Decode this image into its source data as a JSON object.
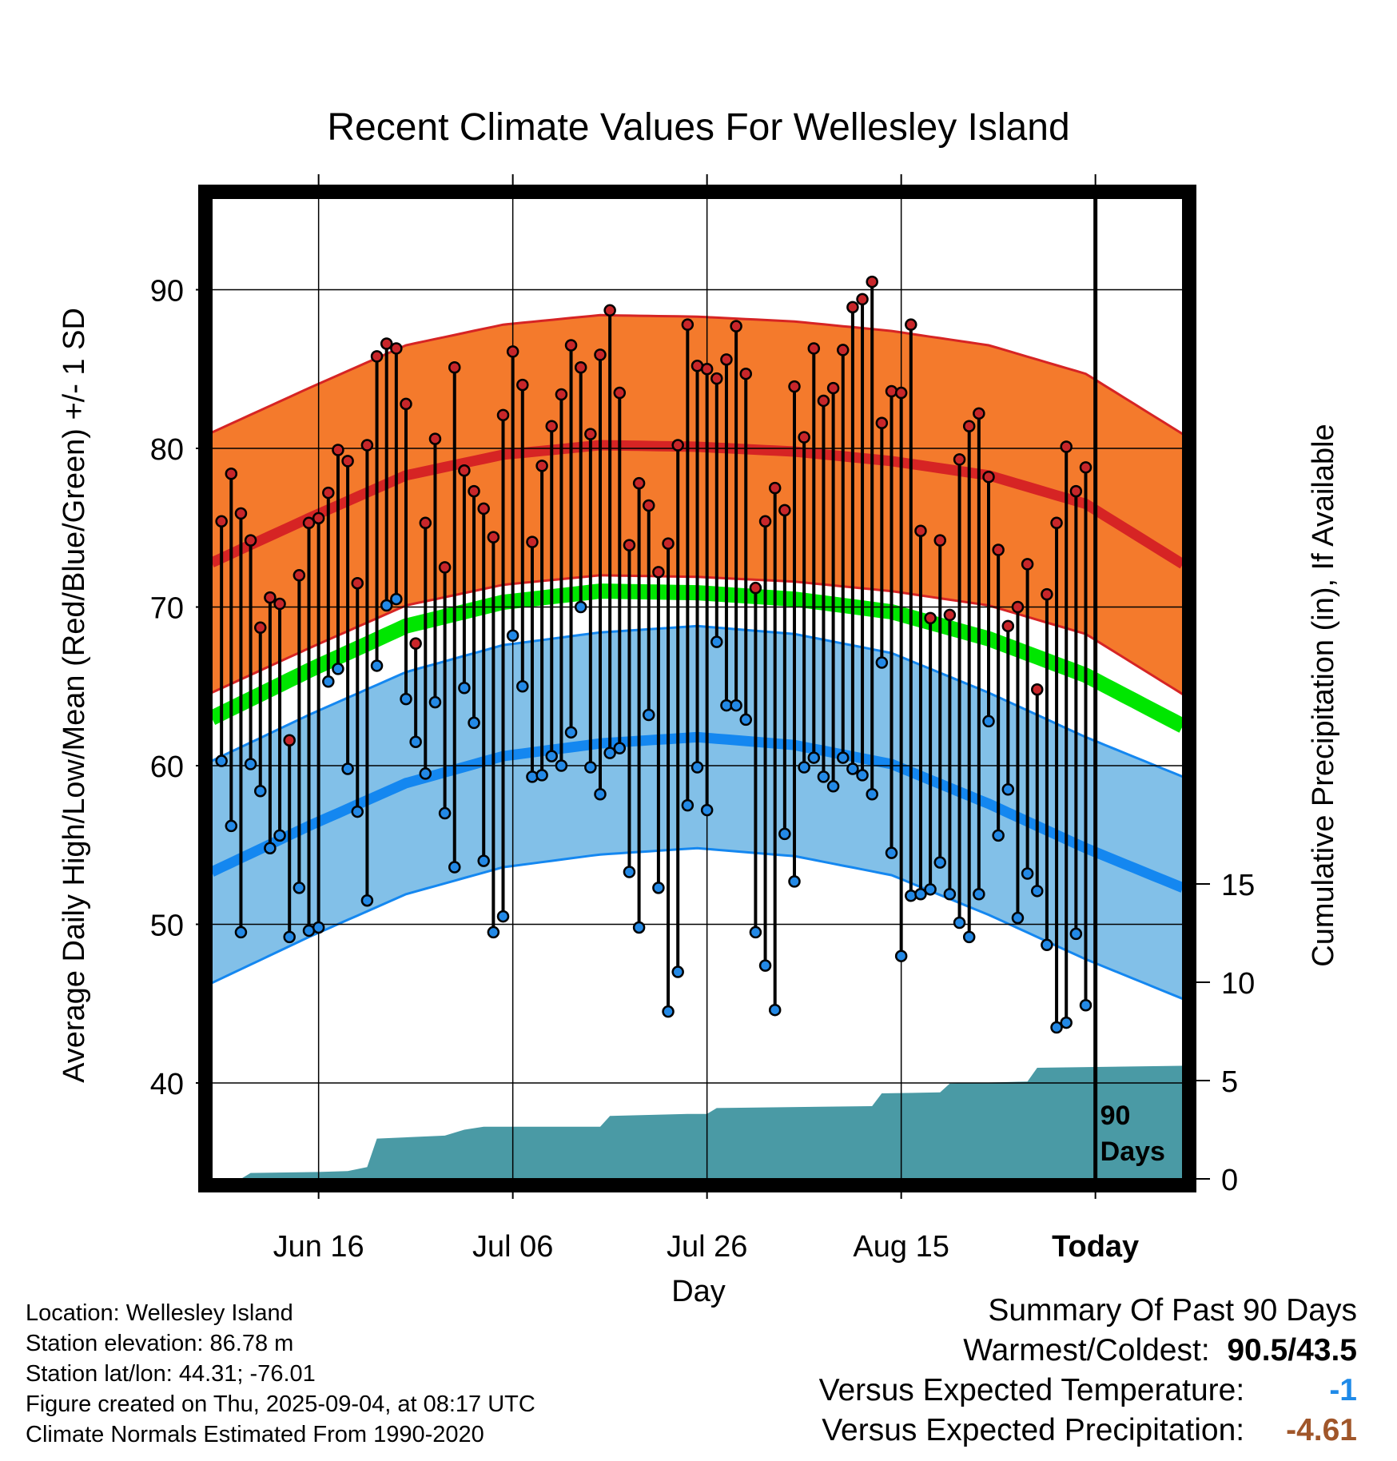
{
  "chart_data": {
    "type": "line",
    "title": "Recent Climate Values For Wellesley Island",
    "xlabel": "Day",
    "ylabel": "Average Daily High/Low/Mean (Red/Blue/Green) +/- 1 SD",
    "y2label": "Cumulative Precipitation (in), If Available",
    "ylim": [
      34,
      94
    ],
    "y2lim": [
      0,
      15
    ],
    "y_ticks": [
      40,
      50,
      60,
      70,
      80,
      90
    ],
    "y2_ticks": [
      0,
      5,
      10,
      15
    ],
    "x_ticks": [
      {
        "day": 11,
        "label": "Jun 16"
      },
      {
        "day": 31,
        "label": "Jul 06"
      },
      {
        "day": 51,
        "label": "Jul 26"
      },
      {
        "day": 71,
        "label": "Aug 15"
      },
      {
        "day": 91,
        "label": "Today"
      }
    ],
    "x_range_days": [
      0,
      100
    ],
    "today_day": 91,
    "today_note": [
      "90",
      "Days"
    ],
    "daily_high": [
      75.4,
      78.4,
      75.9,
      74.2,
      68.7,
      70.6,
      70.2,
      61.6,
      72.0,
      75.3,
      75.6,
      77.2,
      79.9,
      79.2,
      71.5,
      80.2,
      85.8,
      86.6,
      86.3,
      82.8,
      67.7,
      75.3,
      80.6,
      72.5,
      85.1,
      78.6,
      77.3,
      76.2,
      74.4,
      82.1,
      86.1,
      84.0,
      74.1,
      78.9,
      81.4,
      83.4,
      86.5,
      85.1,
      80.9,
      85.9,
      88.7,
      83.5,
      73.9,
      77.8,
      76.4,
      72.2,
      74.0,
      80.2,
      87.8,
      85.2,
      85.0,
      84.4,
      85.6,
      87.7,
      84.7,
      71.2,
      75.4,
      77.5,
      76.1,
      83.9,
      80.7,
      86.3,
      83.0,
      83.8,
      86.2,
      88.9,
      89.4,
      90.5,
      81.6,
      83.6,
      83.5,
      87.8,
      74.8,
      69.3,
      74.2,
      69.5,
      79.3,
      81.4,
      82.2,
      78.2,
      73.6,
      68.8,
      70.0,
      72.7,
      64.8,
      70.8,
      75.3,
      80.1,
      77.3,
      78.8
    ],
    "daily_low": [
      60.3,
      56.2,
      49.5,
      60.1,
      58.4,
      54.8,
      55.6,
      49.2,
      52.3,
      49.6,
      49.8,
      65.3,
      66.1,
      59.8,
      57.1,
      51.5,
      66.3,
      70.1,
      70.5,
      64.2,
      61.5,
      59.5,
      64.0,
      57.0,
      53.6,
      64.9,
      62.7,
      54.0,
      49.5,
      50.5,
      68.2,
      65.0,
      59.3,
      59.4,
      60.6,
      60.0,
      62.1,
      70.0,
      59.9,
      58.2,
      60.8,
      61.1,
      53.3,
      49.8,
      63.2,
      52.3,
      44.5,
      47.0,
      57.5,
      59.9,
      57.2,
      67.8,
      63.8,
      63.8,
      62.9,
      49.5,
      47.4,
      44.6,
      55.7,
      52.7,
      59.9,
      60.5,
      59.3,
      58.7,
      60.5,
      59.8,
      59.4,
      58.2,
      66.5,
      54.5,
      48.0,
      51.8,
      51.9,
      52.2,
      53.9,
      51.9,
      50.1,
      49.2,
      51.9,
      62.8,
      55.6,
      58.5,
      50.4,
      53.2,
      52.1,
      48.7,
      43.5,
      43.8,
      49.4,
      44.9
    ],
    "series": [
      {
        "name": "Normal High",
        "color": "#d62424",
        "mean": [
          [
            0,
            72.8
          ],
          [
            10,
            75.6
          ],
          [
            20,
            78.3
          ],
          [
            30,
            79.6
          ],
          [
            40,
            80.2
          ],
          [
            50,
            80.1
          ],
          [
            60,
            79.8
          ],
          [
            70,
            79.2
          ],
          [
            80,
            78.3
          ],
          [
            90,
            76.5
          ],
          [
            100,
            72.7
          ]
        ],
        "sd": 8.2
      },
      {
        "name": "Normal Mean",
        "color": "#00e600",
        "mean": [
          [
            0,
            63.0
          ],
          [
            10,
            66.0
          ],
          [
            20,
            68.8
          ],
          [
            30,
            70.3
          ],
          [
            40,
            71.0
          ],
          [
            50,
            70.9
          ],
          [
            60,
            70.5
          ],
          [
            70,
            69.7
          ],
          [
            80,
            68.0
          ],
          [
            90,
            65.7
          ],
          [
            100,
            62.5
          ]
        ]
      },
      {
        "name": "Normal Low",
        "color": "#1487f0",
        "mean": [
          [
            0,
            53.3
          ],
          [
            10,
            56.2
          ],
          [
            20,
            58.9
          ],
          [
            30,
            60.6
          ],
          [
            40,
            61.4
          ],
          [
            50,
            61.8
          ],
          [
            60,
            61.3
          ],
          [
            70,
            60.1
          ],
          [
            80,
            57.6
          ],
          [
            90,
            54.8
          ],
          [
            100,
            52.3
          ]
        ],
        "sd": 7.0
      }
    ],
    "precip_cumulative": [
      [
        0,
        0.0
      ],
      [
        3,
        0.0
      ],
      [
        4,
        0.3
      ],
      [
        11,
        0.35
      ],
      [
        14,
        0.4
      ],
      [
        16,
        0.6
      ],
      [
        17,
        2.05
      ],
      [
        24,
        2.2
      ],
      [
        26,
        2.5
      ],
      [
        28,
        2.65
      ],
      [
        40,
        2.65
      ],
      [
        41,
        3.2
      ],
      [
        49,
        3.3
      ],
      [
        51,
        3.3
      ],
      [
        52,
        3.6
      ],
      [
        68,
        3.7
      ],
      [
        69,
        4.35
      ],
      [
        75,
        4.4
      ],
      [
        76,
        4.85
      ],
      [
        84,
        4.95
      ],
      [
        85,
        5.65
      ],
      [
        100,
        5.75
      ]
    ],
    "colors": {
      "high_band": "#f47a2c",
      "low_band": "#82c0e8",
      "precip": "#4a9aa5",
      "high_dot": "#c8262a",
      "low_dot": "#2389e6"
    }
  },
  "info": {
    "location": "Location: Wellesley Island",
    "elevation": "Station elevation: 86.78 m",
    "latlon": "Station lat/lon: 44.31; -76.01",
    "created": "Figure created on Thu, 2025-09-04, at 08:17 UTC",
    "normals": "Climate Normals Estimated From 1990-2020"
  },
  "summary": {
    "heading": "Summary Of Past 90 Days",
    "warmest_label": "Warmest/Coldest:",
    "warmest_value": "90.5/43.5",
    "temp_label": "Versus Expected Temperature:",
    "temp_value": "-1",
    "temp_color": "#1f8ae8",
    "precip_label": "Versus Expected Precipitation:",
    "precip_value": "-4.61",
    "precip_color": "#a0562a"
  }
}
